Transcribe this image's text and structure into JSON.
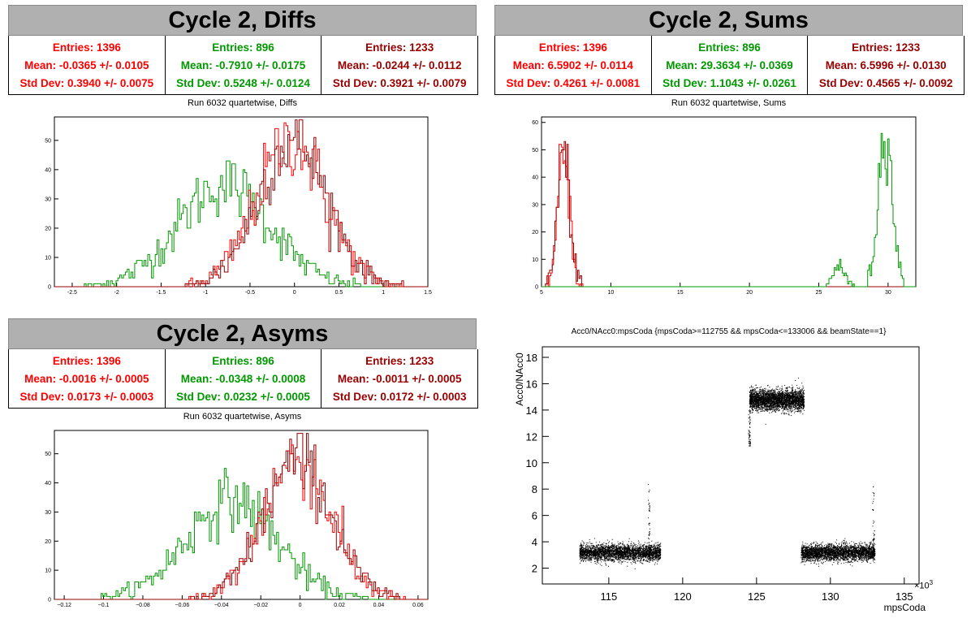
{
  "panels": {
    "diffs": {
      "title": "Cycle 2, Diffs",
      "subtitle": "Run 6032 quartetwise, Diffs",
      "stats": [
        {
          "entries": "Entries: 1396",
          "mean": "Mean: -0.0365 +/- 0.0105",
          "std": "Std Dev: 0.3940 +/- 0.0075",
          "color": "#ff0000"
        },
        {
          "entries": "Entries: 896",
          "mean": "Mean: -0.7910 +/- 0.0175",
          "std": "Std Dev: 0.5248 +/- 0.0124",
          "color": "#009900"
        },
        {
          "entries": "Entries: 1233",
          "mean": "Mean: -0.0244 +/- 0.0112",
          "std": "Std Dev: 0.3921 +/- 0.0079",
          "color": "#990000"
        }
      ]
    },
    "sums": {
      "title": "Cycle 2, Sums",
      "subtitle": "Run 6032 quartetwise, Sums",
      "stats": [
        {
          "entries": "Entries: 1396",
          "mean": "Mean: 6.5902 +/- 0.0114",
          "std": "Std Dev: 0.4261 +/- 0.0081",
          "color": "#ff0000"
        },
        {
          "entries": "Entries: 896",
          "mean": "Mean: 29.3634 +/- 0.0369",
          "std": "Std Dev: 1.1043 +/- 0.0261",
          "color": "#009900"
        },
        {
          "entries": "Entries: 1233",
          "mean": "Mean: 6.5996 +/- 0.0130",
          "std": "Std Dev: 0.4565 +/- 0.0092",
          "color": "#990000"
        }
      ]
    },
    "asyms": {
      "title": "Cycle 2, Asyms",
      "subtitle": "Run 6032 quartetwise, Asyms",
      "stats": [
        {
          "entries": "Entries: 1396",
          "mean": "Mean: -0.0016 +/- 0.0005",
          "std": "Std Dev: 0.0173 +/- 0.0003",
          "color": "#ff0000"
        },
        {
          "entries": "Entries: 896",
          "mean": "Mean: -0.0348 +/- 0.0008",
          "std": "Std Dev: 0.0232 +/- 0.0005",
          "color": "#009900"
        },
        {
          "entries": "Entries: 1233",
          "mean": "Mean: -0.0011 +/- 0.0005",
          "std": "Std Dev: 0.0172 +/- 0.0003",
          "color": "#990000"
        }
      ]
    },
    "scatter": {
      "title": "Acc0/NAcc0:mpsCoda {mpsCoda>=112755 && mpsCoda<=133006 && beamState==1}",
      "xlabel": "mpsCoda",
      "ylabel": "Acc0/NAcc0",
      "xexp": "×10",
      "xexp_sup": "3"
    }
  },
  "chart_data": [
    {
      "type": "line",
      "xlim": [
        -2.7,
        1.5
      ],
      "ylim": [
        0,
        58
      ],
      "xticks": [
        -2.5,
        -2,
        -1.5,
        -1,
        -0.5,
        0,
        0.5,
        1,
        1.5
      ],
      "xtick_labels": [
        "-2.5",
        "-2",
        "-1.5",
        "-1",
        "-0.5",
        "0",
        "0.5",
        "1",
        "1.5"
      ],
      "yticks": [
        0,
        10,
        20,
        30,
        40,
        50
      ],
      "ytick_labels": [
        "0",
        "10",
        "20",
        "30",
        "40",
        "50"
      ],
      "series": [
        {
          "color": "#009900",
          "peaks": [
            {
              "mu": -0.79,
              "sigma": 0.52,
              "amp": 35
            }
          ]
        },
        {
          "color": "#ff0000",
          "peaks": [
            {
              "mu": -0.04,
              "sigma": 0.39,
              "amp": 50
            }
          ]
        },
        {
          "color": "#990000",
          "peaks": [
            {
              "mu": -0.02,
              "sigma": 0.39,
              "amp": 50
            }
          ]
        }
      ]
    },
    {
      "type": "line",
      "xlim": [
        5,
        32
      ],
      "ylim": [
        0,
        62
      ],
      "xticks": [
        5,
        10,
        15,
        20,
        25,
        30
      ],
      "xtick_labels": [
        "5",
        "10",
        "15",
        "20",
        "25",
        "30"
      ],
      "yticks": [
        0,
        10,
        20,
        30,
        40,
        50,
        60
      ],
      "ytick_labels": [
        "0",
        "10",
        "20",
        "30",
        "40",
        "50",
        "60"
      ],
      "series": [
        {
          "color": "#ff0000",
          "peaks": [
            {
              "mu": 6.6,
              "sigma": 0.43,
              "amp": 50
            }
          ]
        },
        {
          "color": "#990000",
          "peaks": [
            {
              "mu": 6.6,
              "sigma": 0.45,
              "amp": 49
            }
          ]
        },
        {
          "color": "#009900",
          "peaks": [
            {
              "mu": 29.8,
              "sigma": 0.5,
              "amp": 58
            },
            {
              "mu": 26.5,
              "sigma": 0.4,
              "amp": 8
            }
          ]
        }
      ]
    },
    {
      "type": "line",
      "xlim": [
        -0.125,
        0.065
      ],
      "ylim": [
        0,
        58
      ],
      "xticks": [
        -0.12,
        -0.1,
        -0.08,
        -0.06,
        -0.04,
        -0.02,
        0,
        0.02,
        0.04,
        0.06
      ],
      "xtick_labels": [
        "−0.12",
        "−0.1",
        "−0.08",
        "−0.06",
        "−0.04",
        "−0.02",
        "0",
        "0.02",
        "0.04",
        "0.06"
      ],
      "yticks": [
        0,
        10,
        20,
        30,
        40,
        50
      ],
      "ytick_labels": [
        "0",
        "10",
        "20",
        "30",
        "40",
        "50"
      ],
      "series": [
        {
          "color": "#009900",
          "peaks": [
            {
              "mu": -0.035,
              "sigma": 0.023,
              "amp": 34
            }
          ]
        },
        {
          "color": "#ff0000",
          "peaks": [
            {
              "mu": -0.0016,
              "sigma": 0.0173,
              "amp": 48
            }
          ]
        },
        {
          "color": "#990000",
          "peaks": [
            {
              "mu": -0.0011,
              "sigma": 0.0172,
              "amp": 48
            }
          ]
        }
      ]
    },
    {
      "type": "scatter",
      "xlim": [
        110.5,
        136
      ],
      "ylim": [
        0.8,
        18.8
      ],
      "xticks": [
        115,
        120,
        125,
        130,
        135
      ],
      "xtick_labels": [
        "115",
        "120",
        "125",
        "130",
        "135"
      ],
      "yticks": [
        2,
        4,
        6,
        8,
        10,
        12,
        14,
        16,
        18
      ],
      "ytick_labels": [
        "2",
        "4",
        "6",
        "8",
        "10",
        "12",
        "14",
        "16",
        "18"
      ],
      "clusters": [
        {
          "x": [
            113.0,
            118.5
          ],
          "y_center": 3.2,
          "y_spread": 0.55
        },
        {
          "x": [
            124.5,
            128.2
          ],
          "y_center": 14.8,
          "y_spread": 0.7
        },
        {
          "x": [
            128.0,
            133.0
          ],
          "y_center": 3.2,
          "y_spread": 0.55
        }
      ],
      "spikes": [
        {
          "x": 117.7,
          "y": [
            3.0,
            8.4
          ]
        },
        {
          "x": 124.5,
          "y": [
            11.3,
            14.0
          ]
        },
        {
          "x": 132.9,
          "y": [
            3.0,
            8.4
          ]
        }
      ]
    }
  ]
}
